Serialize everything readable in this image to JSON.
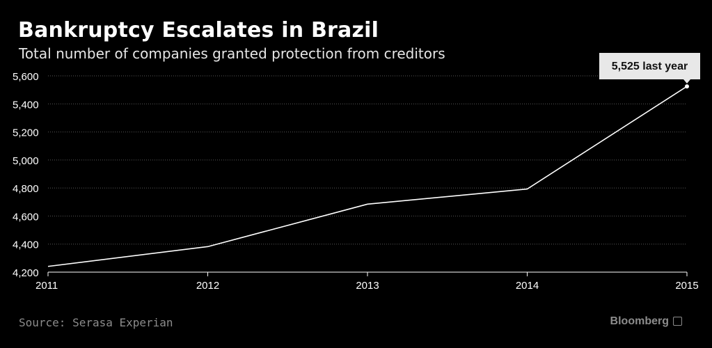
{
  "header": {
    "title": "Bankruptcy Escalates in Brazil",
    "subtitle": "Total number of companies granted protection from creditors"
  },
  "footer": {
    "source": "Source: Serasa Experian",
    "brand": "Bloomberg"
  },
  "colors": {
    "background": "#000000",
    "line": "#ffffff",
    "grid": "#5a5a5a",
    "callout_bg": "#e8e8e8",
    "muted_text": "#8c8c8c"
  },
  "chart_data": {
    "type": "line",
    "title": "Bankruptcy Escalates in Brazil",
    "subtitle": "Total number of companies granted protection from creditors",
    "xlabel": "",
    "ylabel": "",
    "x": [
      2011,
      2012,
      2013,
      2014,
      2015
    ],
    "x_tick_labels": [
      "2011",
      "2012",
      "2013",
      "2014",
      "2015"
    ],
    "series": [
      {
        "name": "Companies granted protection",
        "values": [
          4241,
          4382,
          4685,
          4793,
          5525
        ]
      }
    ],
    "ylim": [
      4200,
      5600
    ],
    "y_ticks": [
      4200,
      4400,
      4600,
      4800,
      5000,
      5200,
      5400,
      5600
    ],
    "y_tick_labels": [
      "4,200",
      "4,400",
      "4,600",
      "4,800",
      "5,000",
      "5,200",
      "5,400",
      "5,600"
    ],
    "grid": "horizontal dotted",
    "annotation": {
      "text": "5,525 last year",
      "x": 2015,
      "y": 5525
    }
  }
}
